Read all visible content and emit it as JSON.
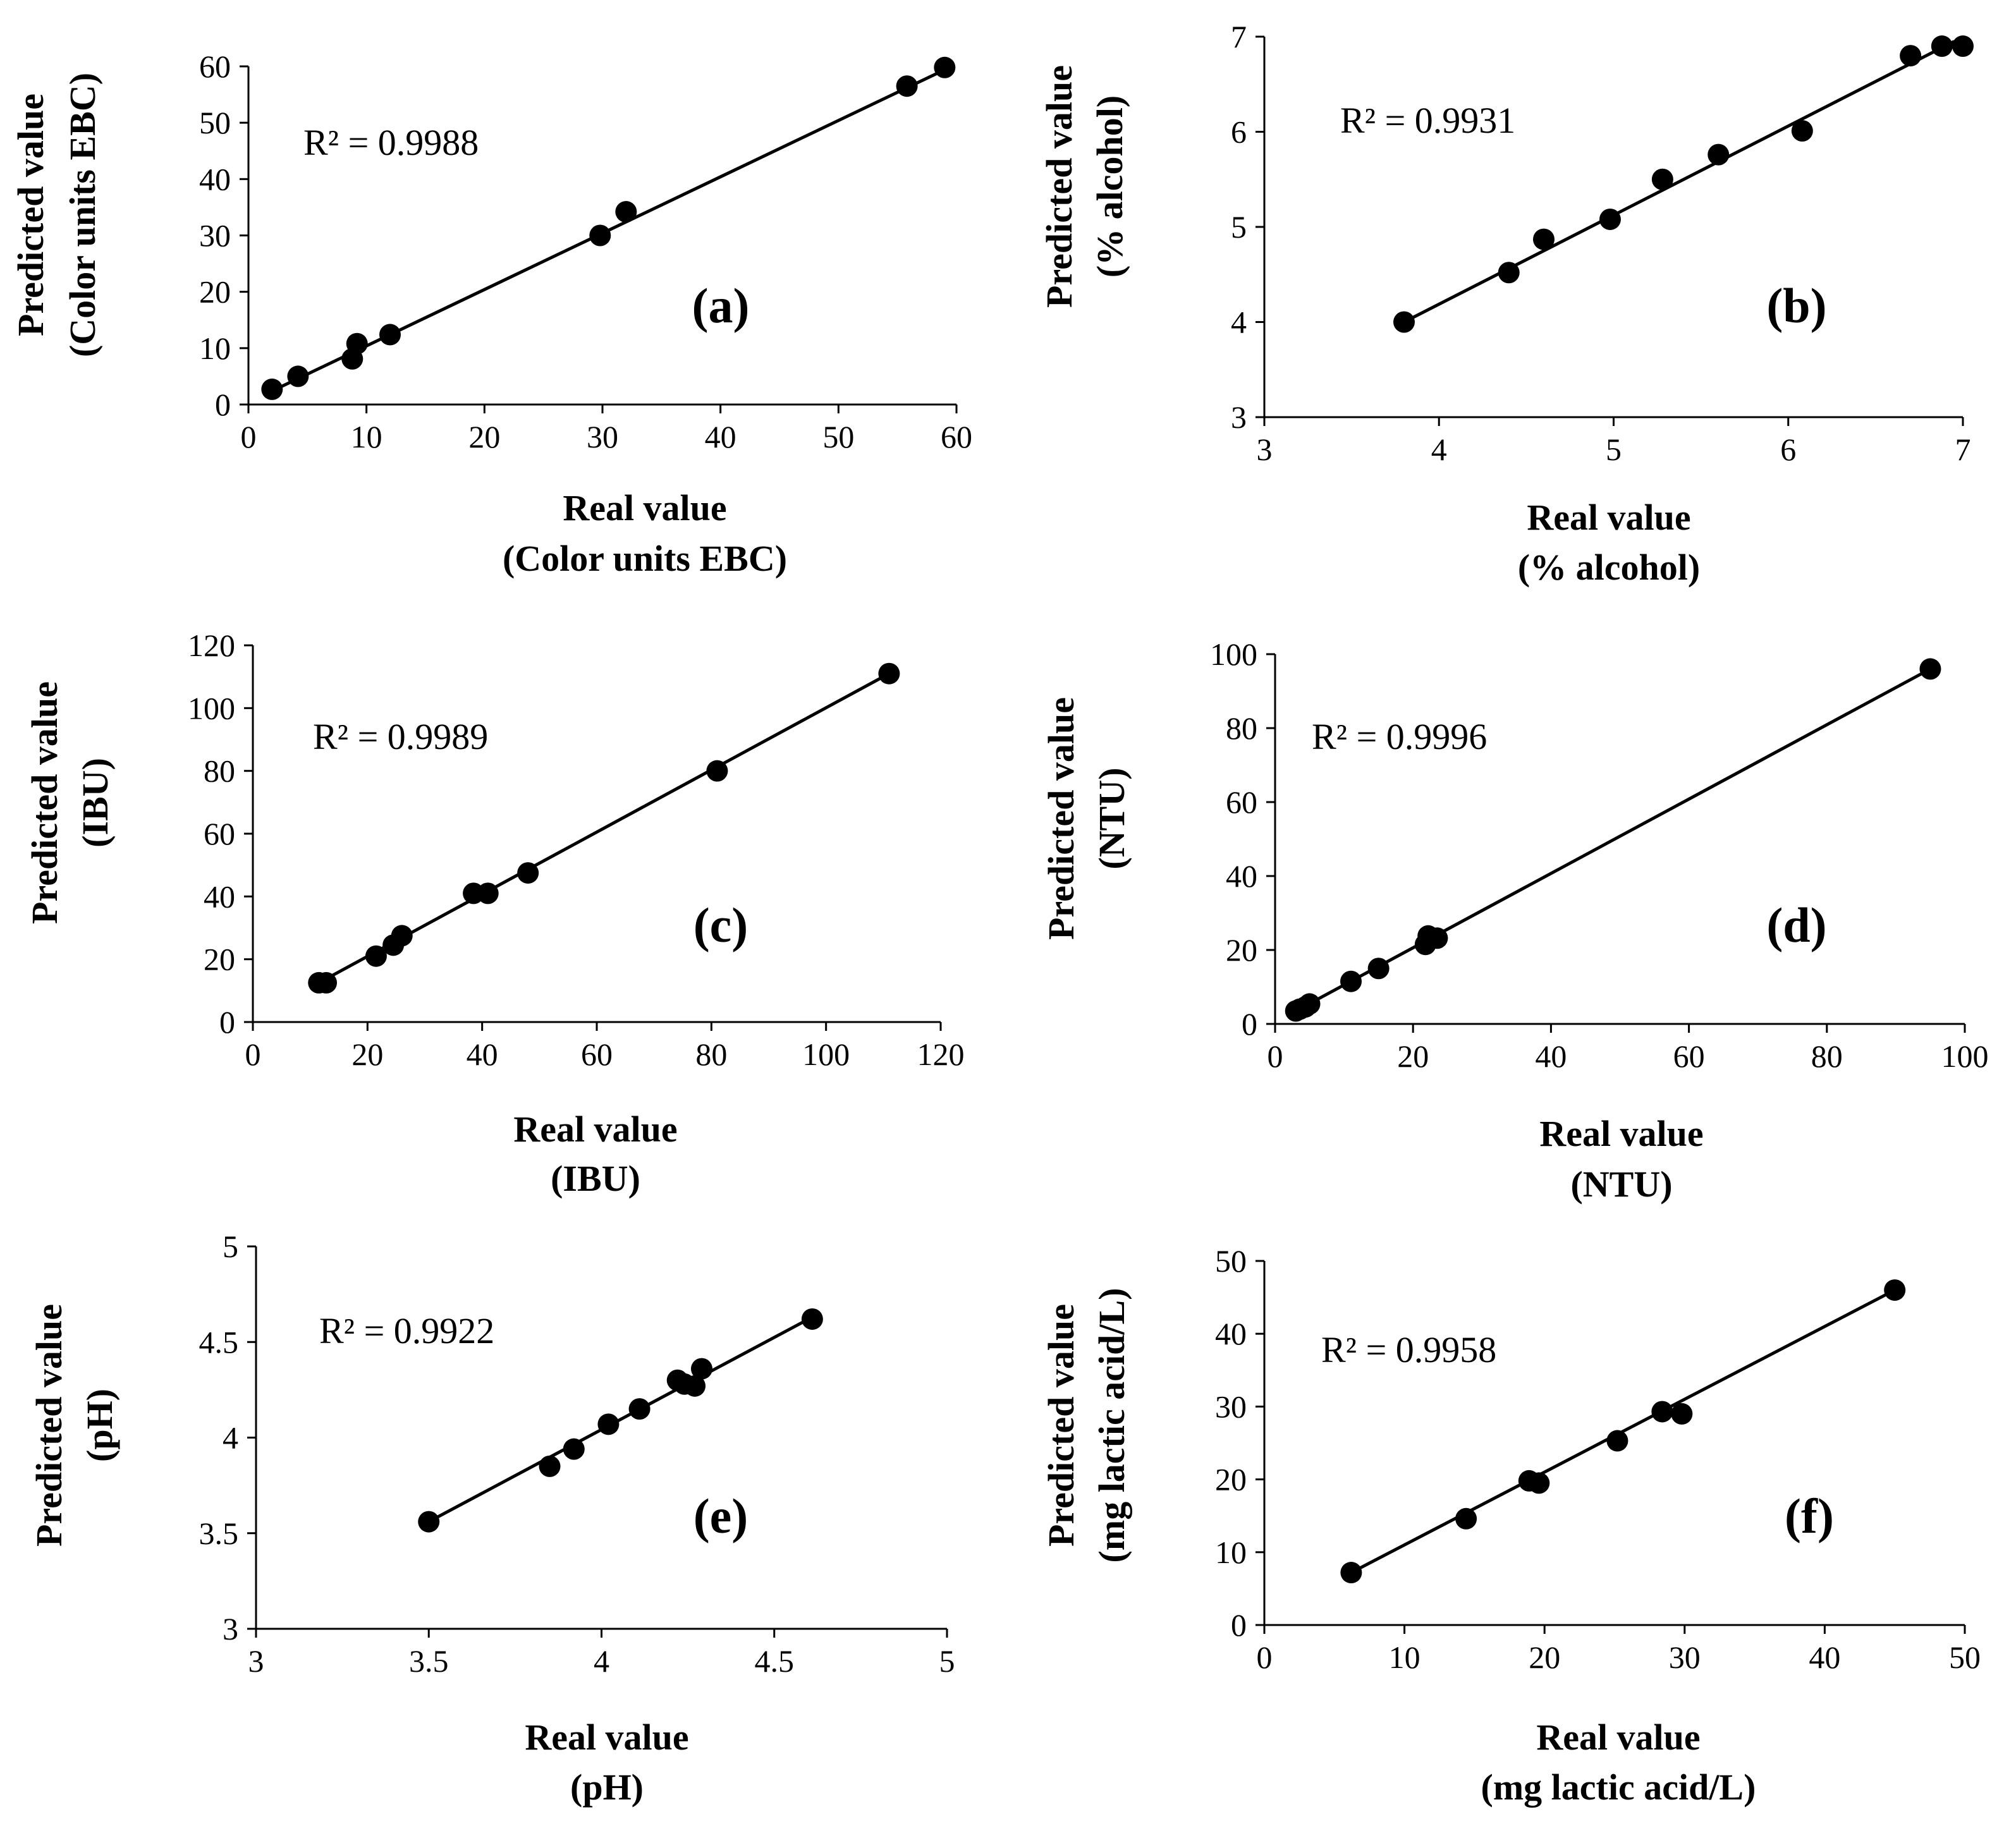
{
  "chart_data": [
    {
      "type": "scatter",
      "panel_label": "(a)",
      "r2_text": "R² = 0.9988",
      "xlabel_lines": [
        "Real value",
        "(Color units EBC)"
      ],
      "ylabel_lines": [
        "Predicted value",
        "(Color units EBC)"
      ],
      "xlim": [
        0,
        60
      ],
      "ylim": [
        0,
        60
      ],
      "xticks": [
        0,
        10,
        20,
        30,
        40,
        50,
        60
      ],
      "yticks": [
        0,
        10,
        20,
        30,
        40,
        50,
        60
      ],
      "trendline": [
        [
          2,
          2.4
        ],
        [
          59,
          59.4
        ]
      ],
      "points": [
        [
          2,
          2.7
        ],
        [
          4.2,
          5
        ],
        [
          8.8,
          8.1
        ],
        [
          9.2,
          10.8
        ],
        [
          12,
          12.4
        ],
        [
          29.8,
          30
        ],
        [
          32,
          34.2
        ],
        [
          55.8,
          56.5
        ],
        [
          59,
          59.8
        ]
      ]
    },
    {
      "type": "scatter",
      "panel_label": "(b)",
      "r2_text": "R² = 0.9931",
      "xlabel_lines": [
        "Real value",
        "(% alcohol)"
      ],
      "ylabel_lines": [
        "Predicted value",
        "(% alcohol)"
      ],
      "xlim": [
        3,
        7
      ],
      "ylim": [
        3,
        7
      ],
      "xticks": [
        3,
        4,
        5,
        6,
        7
      ],
      "yticks": [
        3,
        4,
        5,
        6,
        7
      ],
      "trendline": [
        [
          3.8,
          4.0
        ],
        [
          6.95,
          6.95
        ]
      ],
      "points": [
        [
          3.8,
          4.0
        ],
        [
          4.4,
          4.52
        ],
        [
          4.6,
          4.87
        ],
        [
          4.98,
          5.08
        ],
        [
          5.28,
          5.5
        ],
        [
          5.6,
          5.76
        ],
        [
          6.08,
          6.01
        ],
        [
          6.7,
          6.8
        ],
        [
          6.88,
          6.9
        ],
        [
          7.0,
          6.9
        ]
      ]
    },
    {
      "type": "scatter",
      "panel_label": "(c)",
      "r2_text": "R² = 0.9989",
      "xlabel_lines": [
        "Real value",
        "(IBU)"
      ],
      "ylabel_lines": [
        "Predicted value",
        "(IBU)"
      ],
      "xlim": [
        0,
        120
      ],
      "ylim": [
        0,
        120
      ],
      "xticks": [
        0,
        20,
        40,
        60,
        80,
        100,
        120
      ],
      "yticks": [
        0,
        20,
        40,
        60,
        80,
        100,
        120
      ],
      "trendline": [
        [
          11,
          12
        ],
        [
          111,
          111
        ]
      ],
      "points": [
        [
          11.5,
          12.5
        ],
        [
          12.8,
          12.5
        ],
        [
          21.5,
          21
        ],
        [
          24.5,
          24.5
        ],
        [
          26,
          27.5
        ],
        [
          38.5,
          41
        ],
        [
          41,
          41
        ],
        [
          48,
          47.5
        ],
        [
          81,
          80
        ],
        [
          111,
          111
        ]
      ]
    },
    {
      "type": "scatter",
      "panel_label": "(d)",
      "r2_text": "R² = 0.9996",
      "xlabel_lines": [
        "Real value",
        "(NTU)"
      ],
      "ylabel_lines": [
        "Predicted value",
        "(NTU)"
      ],
      "xlim": [
        0,
        100
      ],
      "ylim": [
        0,
        100
      ],
      "xticks": [
        0,
        20,
        40,
        60,
        80,
        100
      ],
      "yticks": [
        0,
        20,
        40,
        60,
        80,
        100
      ],
      "trendline": [
        [
          3,
          3.5
        ],
        [
          95,
          96
        ]
      ],
      "points": [
        [
          3,
          3.5
        ],
        [
          3.6,
          4
        ],
        [
          4.4,
          4.6
        ],
        [
          5,
          5.4
        ],
        [
          11,
          11.5
        ],
        [
          15,
          15
        ],
        [
          21.8,
          21.5
        ],
        [
          22.2,
          23.8
        ],
        [
          23.5,
          23.2
        ],
        [
          95,
          96
        ]
      ]
    },
    {
      "type": "scatter",
      "panel_label": "(e)",
      "r2_text": "R² = 0.9922",
      "xlabel_lines": [
        "Real value",
        "(pH)"
      ],
      "ylabel_lines": [
        "Predicted value",
        "(pH)"
      ],
      "xlim": [
        3,
        5
      ],
      "ylim": [
        3,
        5
      ],
      "xticks": [
        3,
        3.5,
        4,
        4.5,
        5
      ],
      "xtick_labels": [
        "3",
        "3.5",
        "4",
        "4.5",
        "5"
      ],
      "yticks": [
        3,
        3.5,
        4,
        4.5,
        5
      ],
      "ytick_labels": [
        "3",
        "3.5",
        "4",
        "4.5",
        "5"
      ],
      "trendline": [
        [
          3.5,
          3.56
        ],
        [
          4.61,
          4.63
        ]
      ],
      "points": [
        [
          3.5,
          3.56
        ],
        [
          3.85,
          3.85
        ],
        [
          3.92,
          3.94
        ],
        [
          4.02,
          4.07
        ],
        [
          4.11,
          4.15
        ],
        [
          4.22,
          4.3
        ],
        [
          4.24,
          4.28
        ],
        [
          4.27,
          4.27
        ],
        [
          4.29,
          4.36
        ],
        [
          4.61,
          4.62
        ]
      ]
    },
    {
      "type": "scatter",
      "panel_label": "(f)",
      "r2_text": "R² = 0.9958",
      "xlabel_lines": [
        "Real value",
        "(mg lactic acid/L)"
      ],
      "ylabel_lines": [
        "Predicted value",
        "(mg lactic acid/L)"
      ],
      "xlim": [
        0,
        50
      ],
      "ylim": [
        0,
        50
      ],
      "xticks": [
        0,
        10,
        20,
        30,
        40,
        50
      ],
      "yticks": [
        0,
        10,
        20,
        30,
        40,
        50
      ],
      "trendline": [
        [
          6.2,
          7.2
        ],
        [
          45,
          46
        ]
      ],
      "points": [
        [
          6.2,
          7.2
        ],
        [
          14.4,
          14.6
        ],
        [
          18.9,
          19.8
        ],
        [
          19.6,
          19.5
        ],
        [
          25.2,
          25.3
        ],
        [
          28.4,
          29.3
        ],
        [
          29.8,
          29.0
        ],
        [
          45,
          46
        ]
      ]
    }
  ]
}
